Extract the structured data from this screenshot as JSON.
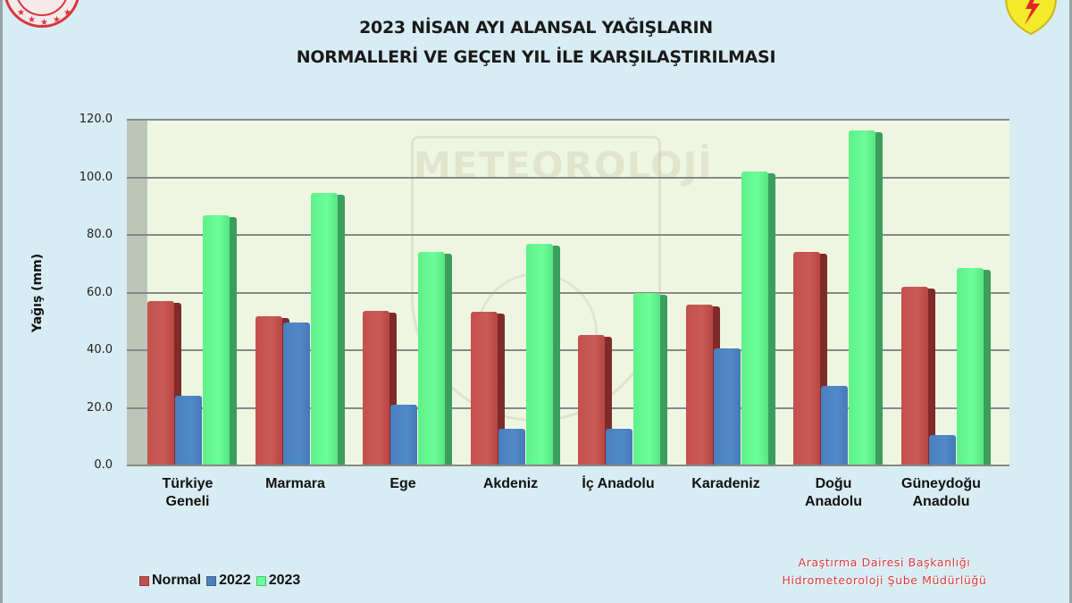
{
  "header": {
    "title_line1": "2023 NİSAN AYI ALANSAL YAĞIŞLARIN",
    "title_line2": "NORMALLERİ VE GEÇEN YIL İLE KARŞILAŞTIRILMASI",
    "logo_left": "ministry-seal-icon",
    "logo_right": "meteorology-shield-icon"
  },
  "footer": {
    "credit_line1": "Araştırma Dairesi Başkanlığı",
    "credit_line2": "Hidrometeoroloji Şube Müdürlüğü",
    "credit_color": "#d8363a"
  },
  "watermark": {
    "text": "METEOROLOJİ"
  },
  "colors": {
    "Normal": "#c0504d",
    "2022": "#4f81bd",
    "2023": "#66ff99",
    "plot_bg": "#eef6e2",
    "page_bg": "#d8ecf3"
  },
  "chart_data": {
    "type": "bar",
    "title": "2023 NİSAN AYI ALANSAL YAĞIŞLARIN NORMALLERİ VE GEÇEN YIL İLE KARŞILAŞTIRILMASI",
    "xlabel": "",
    "ylabel": "Yağış (mm)",
    "ylim": [
      0,
      120
    ],
    "yticks": [
      "0.0",
      "20.0",
      "40.0",
      "60.0",
      "80.0",
      "100.0",
      "120.0"
    ],
    "grid": true,
    "legend_position": "bottom-left",
    "categories": [
      "Türkiye Geneli",
      "Marmara",
      "Ege",
      "Akdeniz",
      "İç Anadolu",
      "Karadeniz",
      "Doğu Anadolu",
      "Güneydoğu Anadolu"
    ],
    "category_lines": [
      [
        "Türkiye",
        "Geneli"
      ],
      [
        "Marmara",
        ""
      ],
      [
        "Ege",
        ""
      ],
      [
        "Akdeniz",
        ""
      ],
      [
        "İç Anadolu",
        ""
      ],
      [
        "Karadeniz",
        ""
      ],
      [
        "Doğu",
        "Anadolu"
      ],
      [
        "Güneydoğu",
        "Anadolu"
      ]
    ],
    "series": [
      {
        "name": "Normal",
        "values": [
          57.0,
          51.8,
          53.6,
          53.3,
          45.3,
          55.8,
          74.1,
          62.0
        ]
      },
      {
        "name": "2022",
        "values": [
          24.2,
          49.6,
          21.1,
          12.7,
          12.7,
          40.6,
          27.6,
          10.5
        ]
      },
      {
        "name": "2023",
        "values": [
          86.8,
          94.6,
          74.1,
          76.9,
          59.8,
          102.0,
          116.3,
          68.5
        ]
      }
    ]
  }
}
